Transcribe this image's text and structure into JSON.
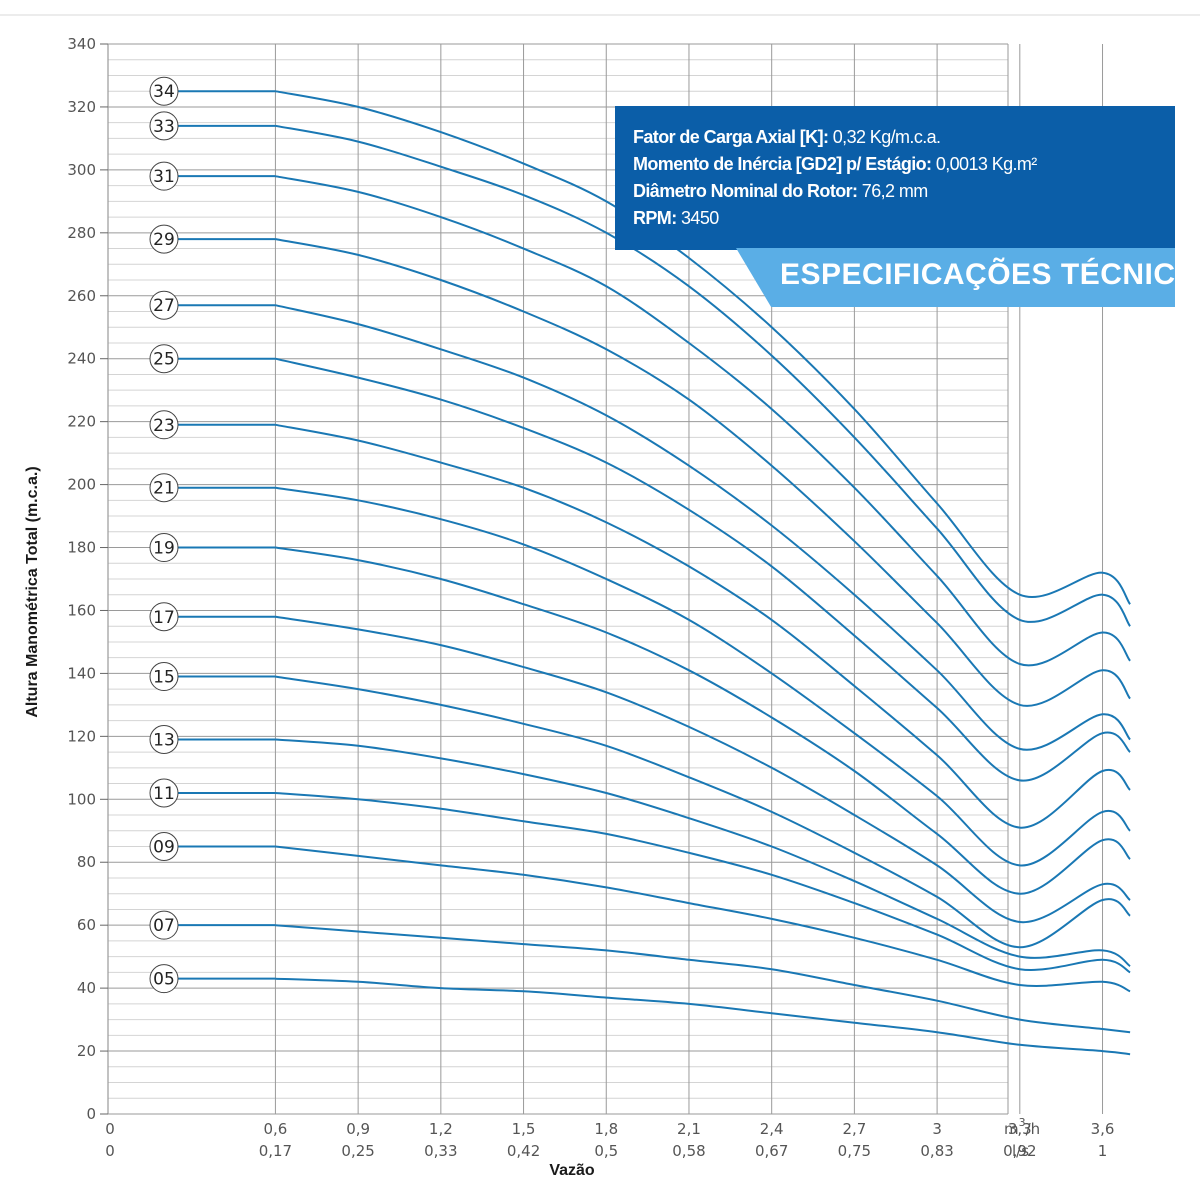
{
  "spec": {
    "rows": [
      {
        "label": "Fator de Carga Axial [K]:",
        "value": " 0,32 Kg/m.c.a."
      },
      {
        "label": "Momento de Inércia [GD2] p/ Estágio:",
        "value": " 0,0013 Kg.m²"
      },
      {
        "label": "Diâmetro Nominal do Rotor:",
        "value": " 76,2 mm"
      },
      {
        "label": "RPM:",
        "value": " 3450"
      }
    ],
    "title": "ESPECIFICAÇÕES TÉCNICAS"
  },
  "colors": {
    "curve": "#1a78b4",
    "box": "#0b5ea8",
    "tab": "#5aaee6",
    "grid_major": "#9a9a9a",
    "grid_minor": "#d4d4d4"
  },
  "chart_data": {
    "type": "line",
    "title": "",
    "ylabel": "Altura Manométrica Total (m.c.a.)",
    "xlabel": "Vazão",
    "ylim": [
      0,
      340
    ],
    "xlim": [
      0,
      3.9
    ],
    "y_ticks": [
      "0",
      "20",
      "40",
      "60",
      "80",
      "100",
      "120",
      "140",
      "160",
      "180",
      "200",
      "220",
      "240",
      "260",
      "280",
      "300",
      "320",
      "340"
    ],
    "x_ticks_m3h": [
      "0",
      "0,6",
      "0,9",
      "1,2",
      "1,5",
      "1,8",
      "2,1",
      "2,4",
      "2,7",
      "3",
      "3,3",
      "3,6"
    ],
    "x_ticks_ls": [
      "0",
      "0,17",
      "0,25",
      "0,33",
      "0,42",
      "0,5",
      "0,58",
      "0,67",
      "0,75",
      "0,83",
      "0,92",
      "1"
    ],
    "x_unit_m3h": [
      "m",
      "3",
      "/h"
    ],
    "x_unit_ls": "l/s",
    "grid": true,
    "x": [
      0.6,
      0.9,
      1.2,
      1.5,
      1.8,
      2.1,
      2.4,
      2.7,
      3.0,
      3.3,
      3.6,
      3.7
    ],
    "series": [
      {
        "name": "34",
        "values": [
          325,
          320,
          312,
          302,
          290,
          272,
          250,
          224,
          194,
          165,
          172,
          162
        ]
      },
      {
        "name": "33",
        "values": [
          314,
          309,
          301,
          292,
          280,
          263,
          241,
          215,
          186,
          157,
          165,
          155
        ]
      },
      {
        "name": "31",
        "values": [
          298,
          293,
          285,
          275,
          263,
          245,
          224,
          199,
          171,
          143,
          153,
          144
        ]
      },
      {
        "name": "29",
        "values": [
          278,
          273,
          265,
          255,
          243,
          227,
          206,
          182,
          156,
          130,
          141,
          132
        ]
      },
      {
        "name": "27",
        "values": [
          257,
          251,
          243,
          234,
          222,
          206,
          187,
          165,
          141,
          116,
          127,
          119
        ]
      },
      {
        "name": "25",
        "values": [
          240,
          234,
          227,
          218,
          207,
          192,
          174,
          152,
          129,
          106,
          121,
          115
        ]
      },
      {
        "name": "23",
        "values": [
          219,
          214,
          207,
          199,
          188,
          174,
          157,
          136,
          114,
          91,
          109,
          103
        ]
      },
      {
        "name": "21",
        "values": [
          199,
          195,
          189,
          181,
          170,
          157,
          140,
          121,
          101,
          79,
          96,
          90
        ]
      },
      {
        "name": "19",
        "values": [
          180,
          176,
          170,
          162,
          153,
          141,
          126,
          109,
          89,
          70,
          87,
          81
        ]
      },
      {
        "name": "17",
        "values": [
          158,
          154,
          149,
          142,
          134,
          123,
          110,
          95,
          79,
          61,
          73,
          68
        ]
      },
      {
        "name": "15",
        "values": [
          139,
          135,
          130,
          124,
          117,
          107,
          96,
          83,
          69,
          53,
          68,
          63
        ]
      },
      {
        "name": "13",
        "values": [
          119,
          117,
          113,
          108,
          102,
          94,
          85,
          74,
          62,
          50,
          52,
          47
        ]
      },
      {
        "name": "11",
        "values": [
          102,
          100,
          97,
          93,
          89,
          83,
          76,
          67,
          57,
          46,
          49,
          45
        ]
      },
      {
        "name": "09",
        "values": [
          85,
          82,
          79,
          76,
          72,
          67,
          62,
          56,
          49,
          41,
          42,
          39
        ]
      },
      {
        "name": "07",
        "values": [
          60,
          58,
          56,
          54,
          52,
          49,
          46,
          41,
          36,
          30,
          27,
          26
        ]
      },
      {
        "name": "05",
        "values": [
          43,
          42,
          40,
          39,
          37,
          35,
          32,
          29,
          26,
          22,
          20,
          19
        ]
      }
    ]
  }
}
